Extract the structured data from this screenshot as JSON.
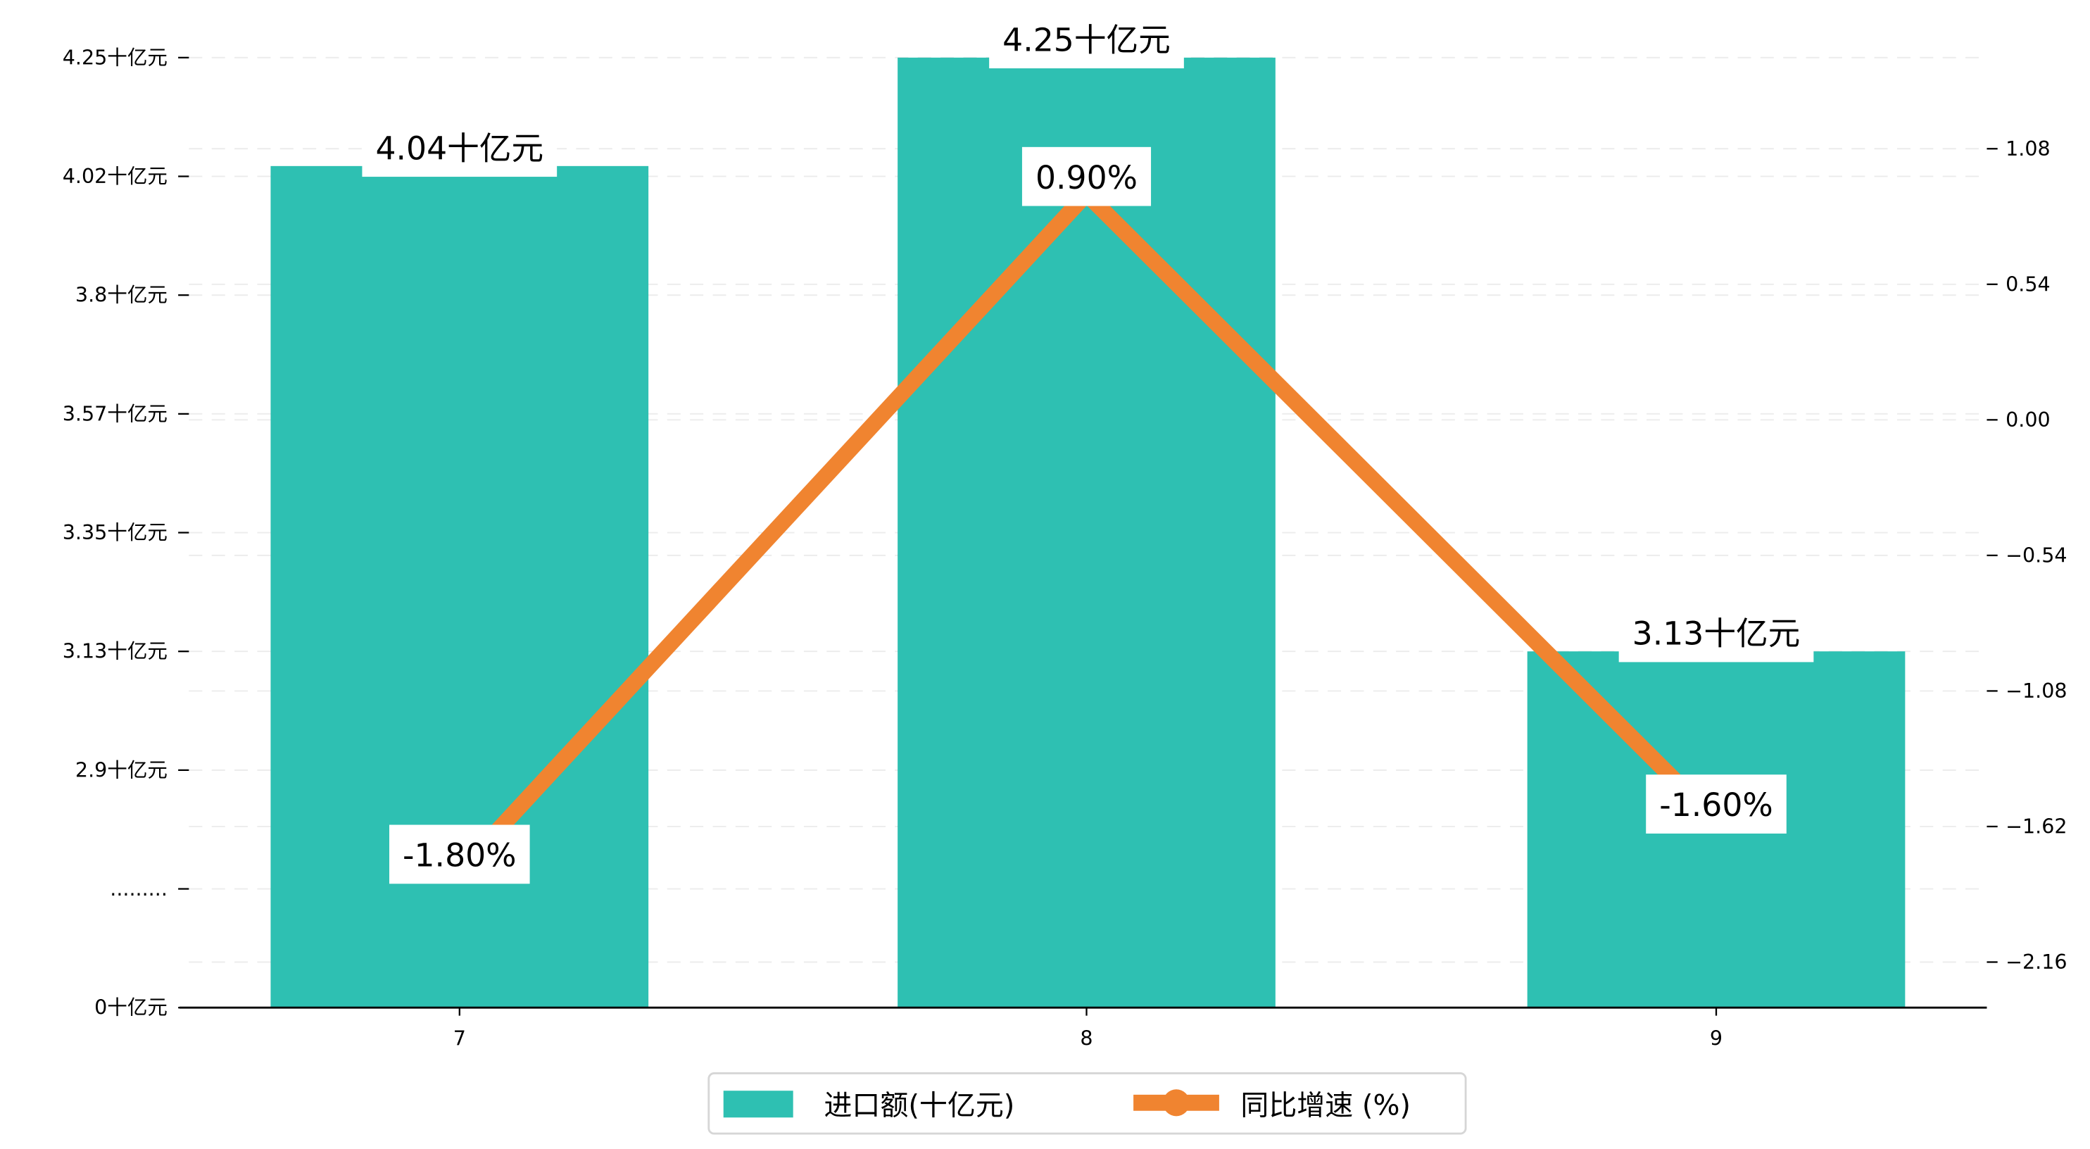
{
  "chart_data": {
    "type": "bar+line",
    "categories": [
      "7",
      "8",
      "9"
    ],
    "series": [
      {
        "name": "进口额(十亿元)",
        "type": "bar",
        "axis": "left",
        "values": [
          4.04,
          4.25,
          3.13
        ],
        "labels": [
          "4.04十亿元",
          "4.25十亿元",
          "3.13十亿元"
        ],
        "color": "#2ec0b2"
      },
      {
        "name": "同比增速 (%)",
        "type": "line",
        "axis": "right",
        "values": [
          -1.8,
          0.9,
          -1.6
        ],
        "labels": [
          "-1.80%",
          "0.90%",
          "-1.60%"
        ],
        "color": "#f08430"
      }
    ],
    "left_axis": {
      "broken": true,
      "ticks": [
        {
          "value": 0,
          "label": "0十亿元"
        },
        {
          "value": null,
          "label": "........."
        },
        {
          "value": 2.9,
          "label": "2.9十亿元"
        },
        {
          "value": 3.13,
          "label": "3.13十亿元"
        },
        {
          "value": 3.35,
          "label": "3.35十亿元"
        },
        {
          "value": 3.57,
          "label": "3.57十亿元"
        },
        {
          "value": 3.8,
          "label": "3.8十亿元"
        },
        {
          "value": 4.02,
          "label": "4.02十亿元"
        },
        {
          "value": 4.25,
          "label": "4.25十亿元"
        }
      ]
    },
    "right_axis": {
      "ticks": [
        -2.16,
        -1.62,
        -1.08,
        -0.54,
        0.0,
        0.54,
        1.08
      ],
      "tick_labels": [
        "−2.16",
        "−1.62",
        "−1.08",
        "−0.54",
        "0.00",
        "0.54",
        "1.08"
      ]
    },
    "grid": "horizontal dashed",
    "legend": {
      "placement": "bottom-center",
      "entries": [
        "进口额(十亿元)",
        "同比增速 (%)"
      ]
    },
    "title": "",
    "xlabel": "",
    "ylabel": ""
  }
}
